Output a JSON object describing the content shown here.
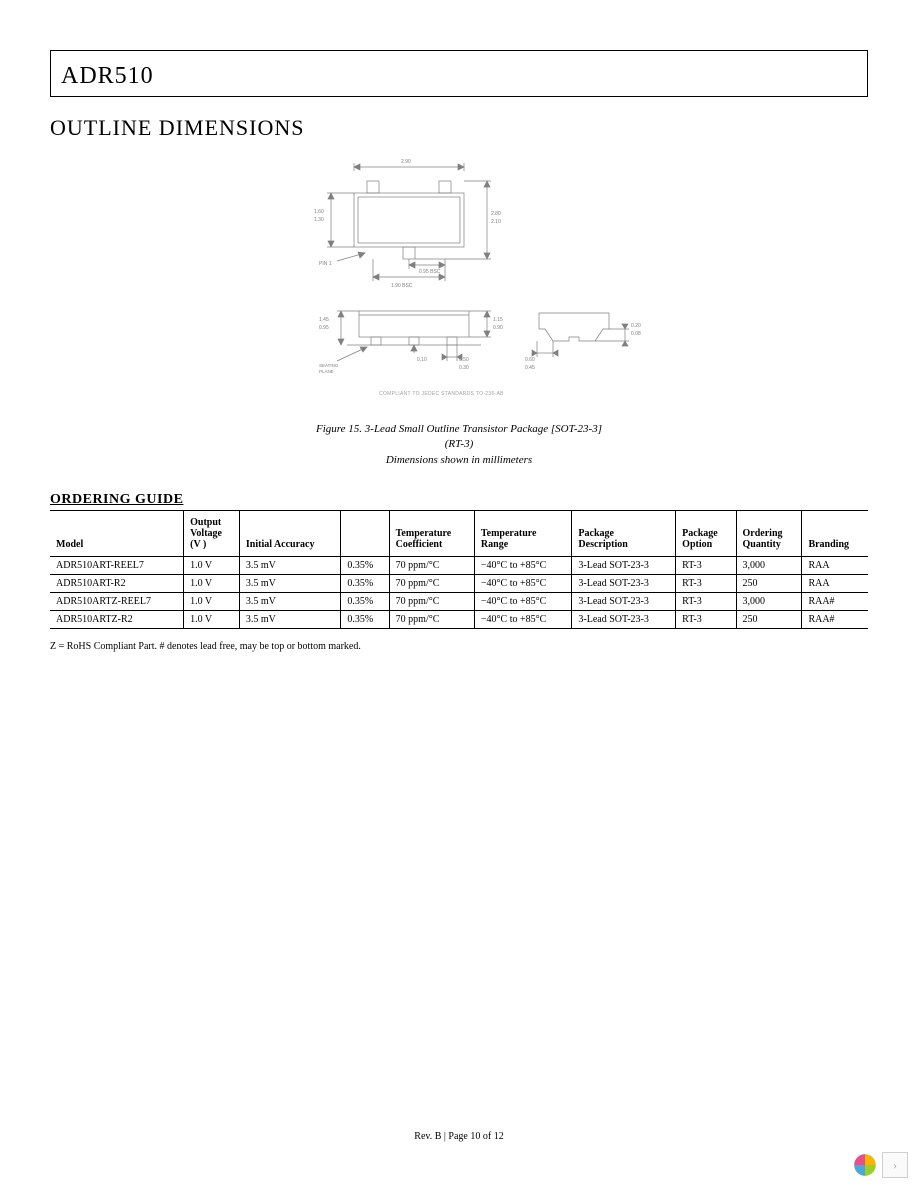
{
  "header": {
    "part_number": "ADR510"
  },
  "section_outline": {
    "heading": "OUTLINE DIMENSIONS",
    "figure_caption_line1": "Figure 15. 3-Lead Small Outline Transistor Package [SOT-23-3]",
    "figure_caption_line2": "(RT-3)",
    "figure_caption_line3": "Dimensions shown in millimeters",
    "diagram": {
      "stroke_color": "#808080",
      "top_view": {
        "overall_width": "2.90",
        "pitch": "1.90 BSC",
        "lead_pitch_half": "0.95 BSC",
        "body_height_max": "1.60",
        "body_height_min": "1.30",
        "overall_height_max": "2.80",
        "overall_height_min": "2.10",
        "pin1_label": "PIN 1"
      },
      "side_view": {
        "seating_plane_label": "SEATING\nPLANE",
        "height_max": "1.45",
        "height_min": "0.95",
        "standoff_max": "1.15",
        "standoff_min": "0.90",
        "thickness": "0.10",
        "lead_width_max": "0.50",
        "lead_width_min": "0.30"
      },
      "end_view": {
        "lead_standoff_max": "0.20",
        "lead_standoff_min": "0.08",
        "foot_max": "0.60",
        "foot_min": "0.45"
      },
      "compliance_note": "COMPLIANT TO JEDEC STANDARDS TO-236-AB"
    }
  },
  "section_ordering": {
    "heading": "ORDERING GUIDE",
    "columns": [
      "Model",
      "Output\nVoltage\n(V      )",
      "Initial Accuracy",
      "",
      "Temperature\nCoefficient",
      "Temperature\nRange",
      "Package\nDescription",
      "Package\nOption",
      "Ordering\nQuantity",
      "Branding"
    ],
    "rows": [
      [
        "ADR510ART-REEL7",
        "1.0 V",
        "3.5 mV",
        "0.35%",
        "70 ppm/°C",
        "−40°C to +85°C",
        "3-Lead SOT-23-3",
        "RT-3",
        "3,000",
        "RAA"
      ],
      [
        "ADR510ART-R2",
        "1.0 V",
        "3.5 mV",
        "0.35%",
        "70 ppm/°C",
        "−40°C to +85°C",
        "3-Lead SOT-23-3",
        "RT-3",
        "250",
        "RAA"
      ],
      [
        "ADR510ARTZ-REEL7",
        "1.0 V",
        "3.5 mV",
        "0.35%",
        "70 ppm/°C",
        "−40°C to +85°C",
        "3-Lead SOT-23-3",
        "RT-3",
        "3,000",
        "RAA#"
      ],
      [
        "ADR510ARTZ-R2",
        "1.0 V",
        "3.5 mV",
        "0.35%",
        "70 ppm/°C",
        "−40°C to +85°C",
        "3-Lead SOT-23-3",
        "RT-3",
        "250",
        "RAA#"
      ]
    ],
    "footnote": "Z = RoHS Compliant Part. # denotes lead free, may be top or bottom marked."
  },
  "footer": {
    "text": "Rev. B | Page 10 of 12"
  },
  "pager": {
    "logo_colors": [
      "#f7b500",
      "#9acd32",
      "#4aa8d8",
      "#e94f86"
    ],
    "next_glyph": "›"
  }
}
